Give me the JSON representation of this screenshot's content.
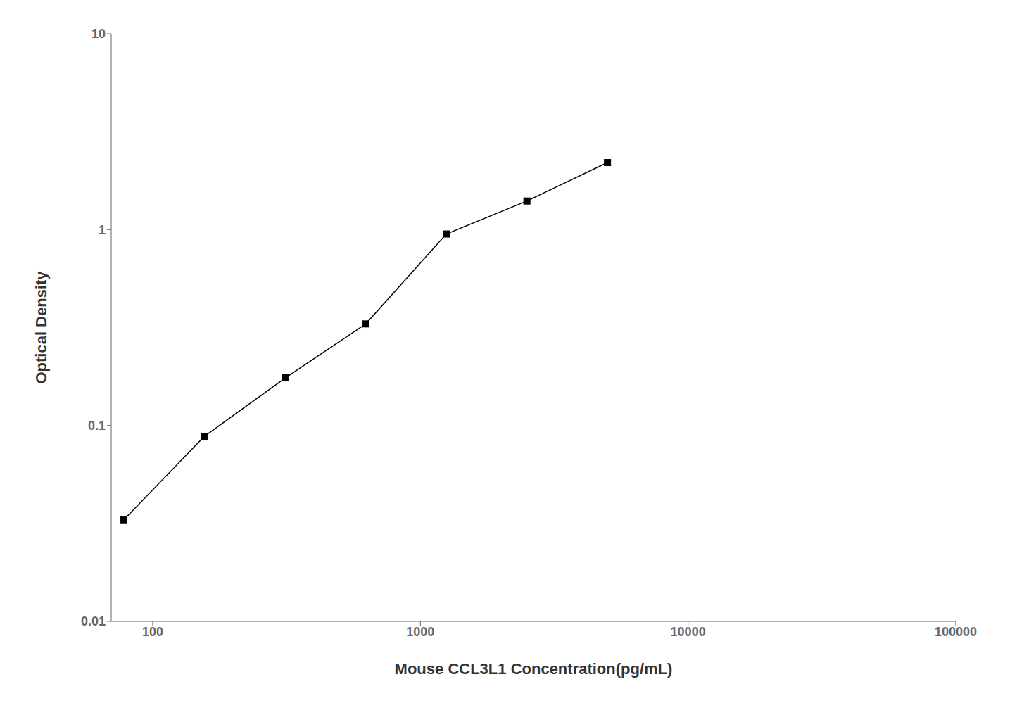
{
  "chart_data": {
    "type": "line",
    "x": [
      78,
      156,
      313,
      625,
      1250,
      2500,
      5000
    ],
    "values": [
      0.033,
      0.088,
      0.175,
      0.33,
      0.95,
      1.4,
      2.2
    ],
    "xlabel": "Mouse CCL3L1 Concentration(pg/mL)",
    "ylabel": "Optical Density",
    "xlim": [
      70,
      100000
    ],
    "ylim": [
      0.01,
      10
    ],
    "xticks": [
      100,
      1000,
      10000,
      100000
    ],
    "yticks": [
      0.01,
      0.1,
      1,
      10
    ],
    "log": true,
    "color": "#000000",
    "marker": "square",
    "grid": false
  }
}
